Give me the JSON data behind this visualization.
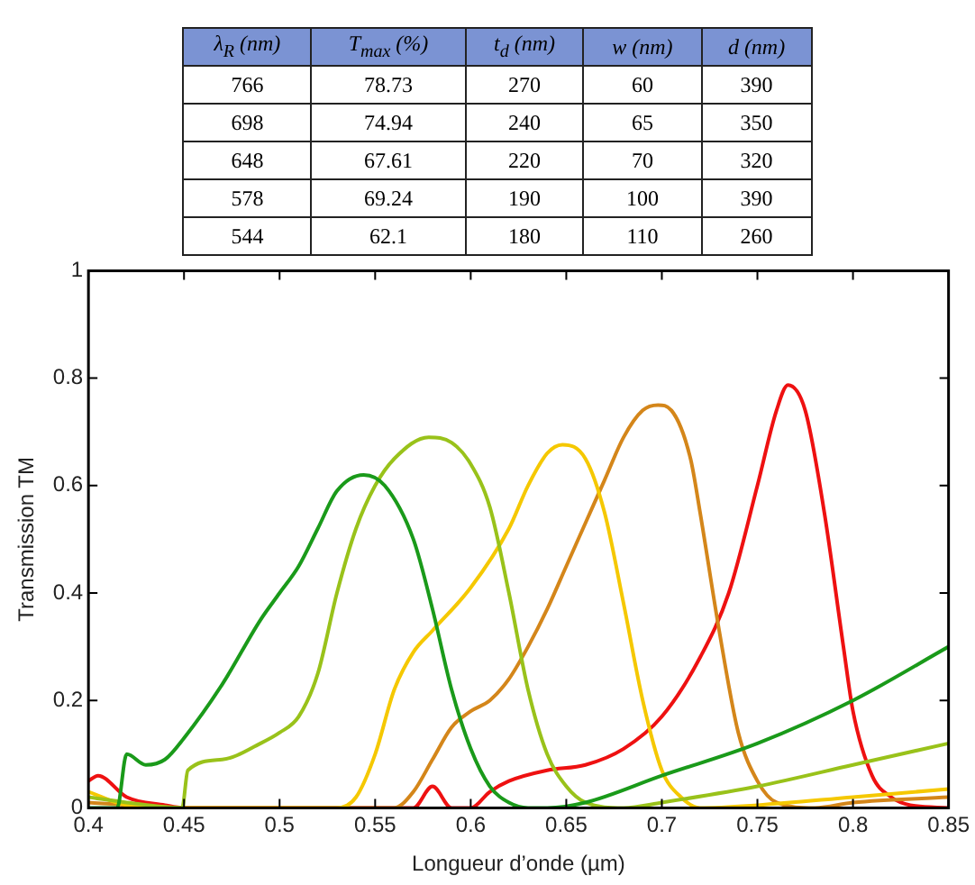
{
  "chart_data": {
    "type": "line",
    "xlabel": "Longueur d’onde (µm)",
    "ylabel": "Transmission TM",
    "annotations": [
      "λ$_{R}$ (nm)",
      "T$_{max}$ (%)",
      "t$_{d}$ (nm)",
      "w (nm)",
      "d (nm)",
      "766",
      "78.73",
      "270",
      "60",
      "390",
      "698",
      "74.94",
      "240",
      "65",
      "350",
      "648",
      "67.61",
      "220",
      "70",
      "320",
      "578",
      "69.24",
      "190",
      "100",
      "390",
      "544",
      "62.1",
      "180",
      "110",
      "260"
    ],
    "xlim": [
      0.4,
      0.85
    ],
    "xticks": [
      0.4,
      0.45,
      0.5,
      0.55,
      0.6,
      0.65,
      0.7,
      0.75,
      0.8,
      0.85
    ],
    "ylim": [
      0,
      1
    ],
    "yticks": [
      0,
      0.2,
      0.4,
      0.6,
      0.8,
      1
    ],
    "grid": false,
    "legend": false,
    "marker": "none",
    "line_style": "solid",
    "series": [
      {
        "color": "#1a9a1a",
        "x": [
          0.4,
          0.415,
          0.42,
          0.43,
          0.44,
          0.45,
          0.47,
          0.49,
          0.5,
          0.51,
          0.52,
          0.53,
          0.544,
          0.555,
          0.57,
          0.58,
          0.59,
          0.6,
          0.61,
          0.62,
          0.63,
          0.64,
          0.66,
          0.7,
          0.75,
          0.8,
          0.85
        ],
        "values": [
          0,
          0,
          0.1,
          0.08,
          0.09,
          0.13,
          0.23,
          0.35,
          0.4,
          0.45,
          0.52,
          0.59,
          0.62,
          0.6,
          0.5,
          0.37,
          0.22,
          0.11,
          0.04,
          0.01,
          0,
          0,
          0.01,
          0.06,
          0.12,
          0.2,
          0.3
        ]
      },
      {
        "color": "#99c21a",
        "x": [
          0.4,
          0.42,
          0.449,
          0.452,
          0.47,
          0.49,
          0.5,
          0.51,
          0.52,
          0.53,
          0.54,
          0.55,
          0.56,
          0.578,
          0.59,
          0.6,
          0.61,
          0.62,
          0.63,
          0.64,
          0.65,
          0.66,
          0.68,
          0.7,
          0.75,
          0.8,
          0.85
        ],
        "values": [
          0.02,
          0.01,
          0,
          0.07,
          0.09,
          0.12,
          0.14,
          0.17,
          0.25,
          0.4,
          0.52,
          0.6,
          0.65,
          0.69,
          0.68,
          0.64,
          0.56,
          0.4,
          0.22,
          0.1,
          0.04,
          0.01,
          0,
          0.01,
          0.04,
          0.08,
          0.12
        ]
      },
      {
        "color": "#f5c800",
        "x": [
          0.4,
          0.42,
          0.45,
          0.53,
          0.54,
          0.55,
          0.56,
          0.57,
          0.58,
          0.6,
          0.62,
          0.63,
          0.64,
          0.648,
          0.66,
          0.67,
          0.68,
          0.69,
          0.7,
          0.71,
          0.72,
          0.75,
          0.8,
          0.85
        ],
        "values": [
          0.03,
          0.005,
          0,
          0,
          0.02,
          0.1,
          0.22,
          0.29,
          0.33,
          0.41,
          0.52,
          0.6,
          0.66,
          0.676,
          0.65,
          0.55,
          0.38,
          0.2,
          0.07,
          0.02,
          0,
          0.005,
          0.02,
          0.035
        ]
      },
      {
        "color": "#d4861a",
        "x": [
          0.4,
          0.45,
          0.56,
          0.57,
          0.58,
          0.59,
          0.6,
          0.61,
          0.62,
          0.63,
          0.64,
          0.65,
          0.66,
          0.67,
          0.68,
          0.69,
          0.698,
          0.705,
          0.715,
          0.72,
          0.73,
          0.74,
          0.75,
          0.76,
          0.78,
          0.8,
          0.85
        ],
        "values": [
          0.01,
          0,
          0,
          0.03,
          0.09,
          0.15,
          0.18,
          0.2,
          0.24,
          0.3,
          0.37,
          0.45,
          0.53,
          0.61,
          0.69,
          0.74,
          0.75,
          0.74,
          0.65,
          0.55,
          0.33,
          0.14,
          0.05,
          0.01,
          0,
          0.01,
          0.02
        ]
      },
      {
        "color": "#ee1111",
        "x": [
          0.4,
          0.405,
          0.42,
          0.44,
          0.45,
          0.57,
          0.58,
          0.59,
          0.6,
          0.61,
          0.62,
          0.64,
          0.66,
          0.68,
          0.7,
          0.72,
          0.735,
          0.75,
          0.76,
          0.766,
          0.775,
          0.785,
          0.795,
          0.8,
          0.81,
          0.82,
          0.83,
          0.85
        ],
        "values": [
          0.05,
          0.06,
          0.02,
          0.005,
          0,
          0,
          0.04,
          0,
          0,
          0.03,
          0.05,
          0.07,
          0.08,
          0.11,
          0.17,
          0.28,
          0.4,
          0.6,
          0.74,
          0.787,
          0.74,
          0.55,
          0.3,
          0.18,
          0.06,
          0.02,
          0.005,
          0
        ]
      }
    ]
  }
}
